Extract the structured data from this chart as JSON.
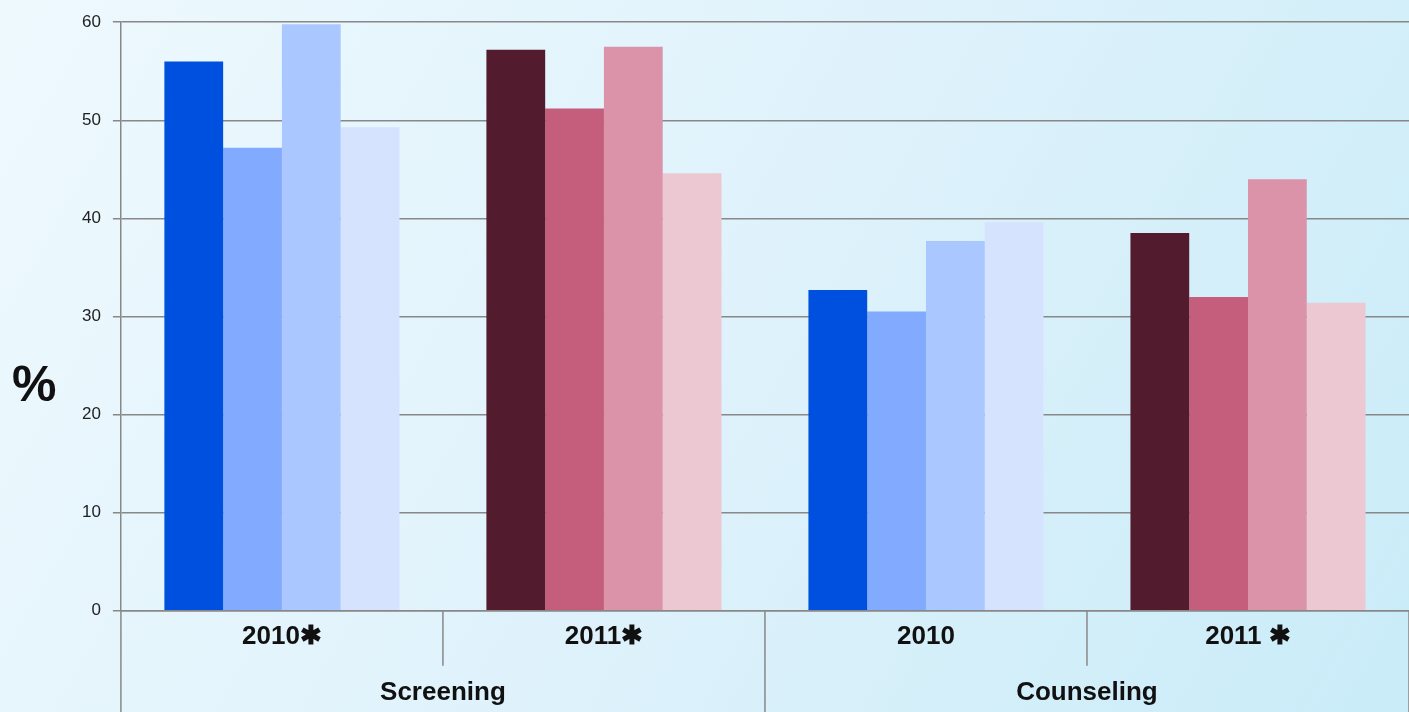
{
  "chart_data": {
    "type": "bar",
    "ylabel": "%",
    "categories": [
      "2010✱",
      "2011✱",
      "2010",
      "2011 ✱"
    ],
    "series": [
      {
        "colors": [
          "#0050e0",
          "#521c2e",
          "#0050e0",
          "#521c2e"
        ],
        "values": [
          56.0,
          57.2,
          32.7,
          38.5
        ]
      },
      {
        "colors": [
          "#82aaff",
          "#c55e7c",
          "#82aaff",
          "#c55e7c"
        ],
        "values": [
          47.2,
          51.2,
          30.5,
          32.0
        ]
      },
      {
        "colors": [
          "#aac8ff",
          "#da93a8",
          "#aac8ff",
          "#da93a8"
        ],
        "values": [
          59.8,
          57.5,
          37.7,
          44.0
        ]
      },
      {
        "colors": [
          "#d5e3ff",
          "#ebc8d2",
          "#d5e3ff",
          "#ebc8d2"
        ],
        "values": [
          49.3,
          44.6,
          39.6,
          31.4
        ]
      }
    ],
    "annotations": [
      "Screening",
      "Counseling"
    ],
    "ylim": [
      0,
      60
    ],
    "yticks": [
      0,
      10,
      20,
      30,
      40,
      50,
      60
    ],
    "grid": "y",
    "legend": false
  }
}
